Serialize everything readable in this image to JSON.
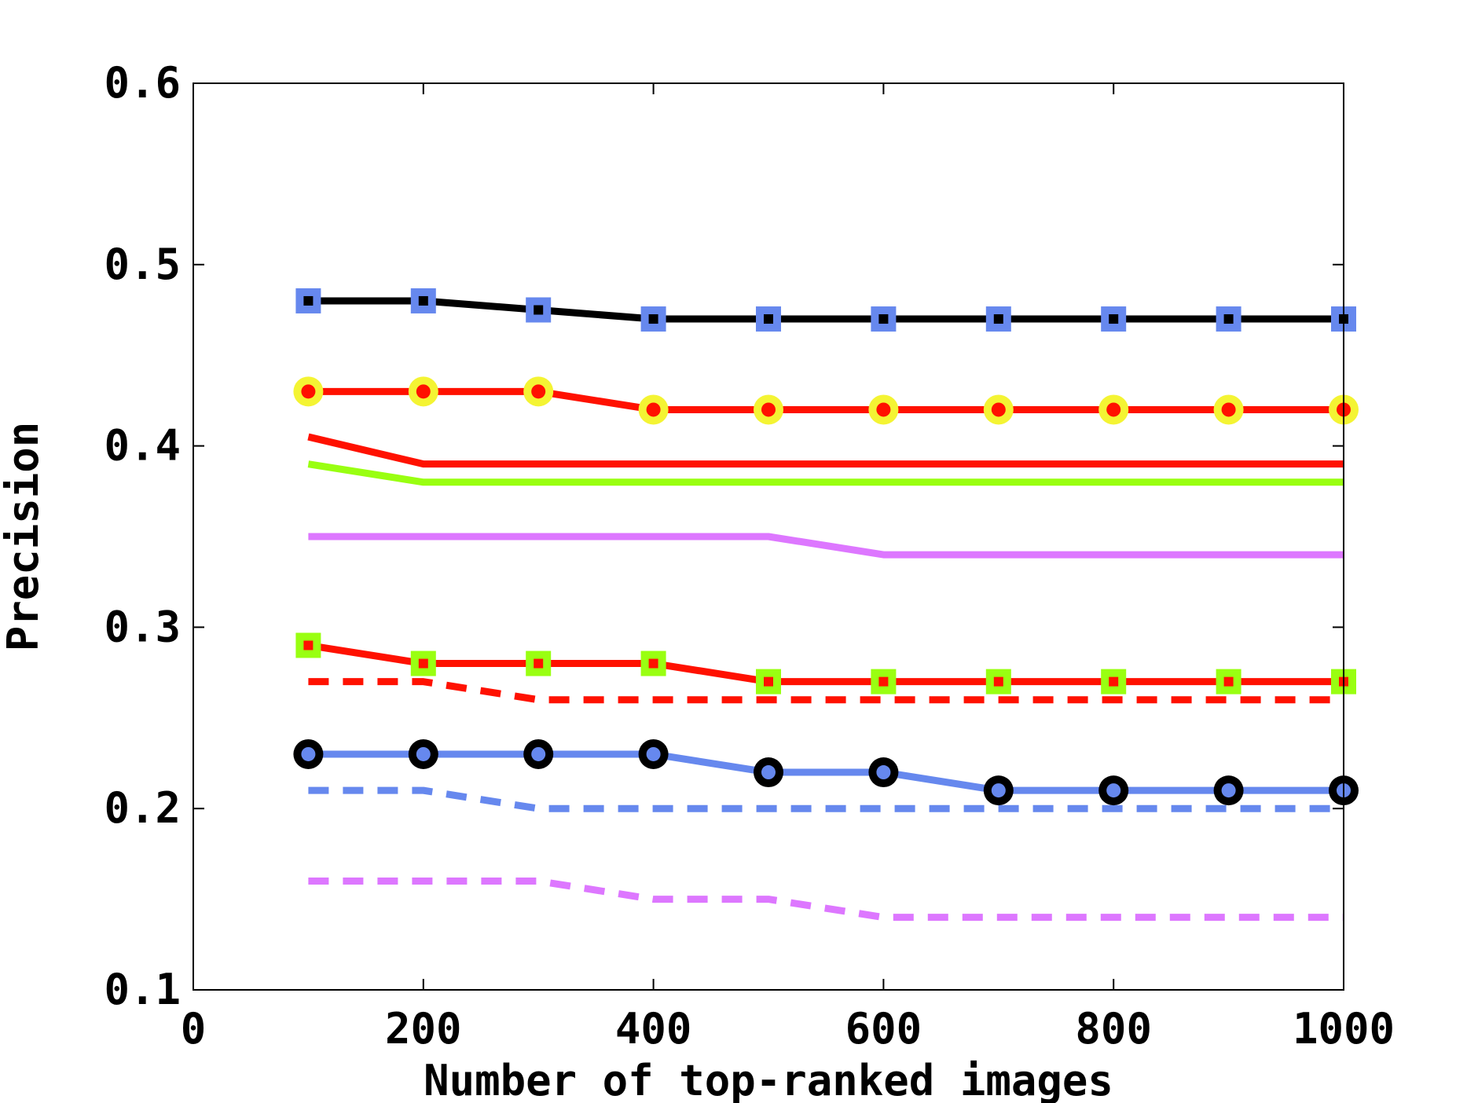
{
  "chart_data": {
    "type": "line",
    "title": "",
    "xlabel": "Number of top-ranked images",
    "ylabel": "Precision",
    "xlim": [
      0,
      1000
    ],
    "ylim": [
      0.1,
      0.6
    ],
    "xticks": [
      0,
      200,
      400,
      600,
      800,
      1000
    ],
    "xtick_labels": [
      "0",
      "200",
      "400",
      "600",
      "800",
      "1000"
    ],
    "yticks": [
      0.1,
      0.2,
      0.3,
      0.4,
      0.5,
      0.6
    ],
    "ytick_labels": [
      "0.1",
      "0.2",
      "0.3",
      "0.4",
      "0.5",
      "0.6"
    ],
    "grid": false,
    "legend": "none",
    "x": [
      100,
      200,
      300,
      400,
      500,
      600,
      700,
      800,
      900,
      1000
    ],
    "series": [
      {
        "color": "#000000",
        "dash": "solid",
        "marker": "square",
        "marker_face": "#000000",
        "marker_edge": "#6688ee",
        "values": [
          0.48,
          0.48,
          0.475,
          0.47,
          0.47,
          0.47,
          0.47,
          0.47,
          0.47,
          0.47
        ]
      },
      {
        "color": "#ff1100",
        "dash": "solid",
        "marker": "circle",
        "marker_face": "#ff1100",
        "marker_edge": "#f4f433",
        "values": [
          0.43,
          0.43,
          0.43,
          0.42,
          0.42,
          0.42,
          0.42,
          0.42,
          0.42,
          0.42
        ]
      },
      {
        "color": "#ff1100",
        "dash": "solid",
        "marker": "none",
        "values": [
          0.405,
          0.39,
          0.39,
          0.39,
          0.39,
          0.39,
          0.39,
          0.39,
          0.39,
          0.39
        ]
      },
      {
        "color": "#99ff11",
        "dash": "solid",
        "marker": "none",
        "values": [
          0.39,
          0.38,
          0.38,
          0.38,
          0.38,
          0.38,
          0.38,
          0.38,
          0.38,
          0.38
        ]
      },
      {
        "color": "#dd77ff",
        "dash": "solid",
        "marker": "none",
        "values": [
          0.35,
          0.35,
          0.35,
          0.35,
          0.35,
          0.34,
          0.34,
          0.34,
          0.34,
          0.34
        ]
      },
      {
        "color": "#ff1100",
        "dash": "solid",
        "marker": "square",
        "marker_face": "#ff1100",
        "marker_edge": "#99ff11",
        "values": [
          0.29,
          0.28,
          0.28,
          0.28,
          0.27,
          0.27,
          0.27,
          0.27,
          0.27,
          0.27
        ]
      },
      {
        "color": "#ff1100",
        "dash": "dashed",
        "marker": "none",
        "values": [
          0.27,
          0.27,
          0.26,
          0.26,
          0.26,
          0.26,
          0.26,
          0.26,
          0.26,
          0.26
        ]
      },
      {
        "color": "#6688ee",
        "dash": "solid",
        "marker": "circle",
        "marker_face": "#6688ee",
        "marker_edge": "#000000",
        "values": [
          0.23,
          0.23,
          0.23,
          0.23,
          0.22,
          0.22,
          0.21,
          0.21,
          0.21,
          0.21
        ]
      },
      {
        "color": "#6688ee",
        "dash": "dashed",
        "marker": "none",
        "values": [
          0.21,
          0.21,
          0.2,
          0.2,
          0.2,
          0.2,
          0.2,
          0.2,
          0.2,
          0.2
        ]
      },
      {
        "color": "#dd77ff",
        "dash": "dashed",
        "marker": "none",
        "values": [
          0.16,
          0.16,
          0.16,
          0.15,
          0.15,
          0.14,
          0.14,
          0.14,
          0.14,
          0.14
        ]
      }
    ]
  }
}
